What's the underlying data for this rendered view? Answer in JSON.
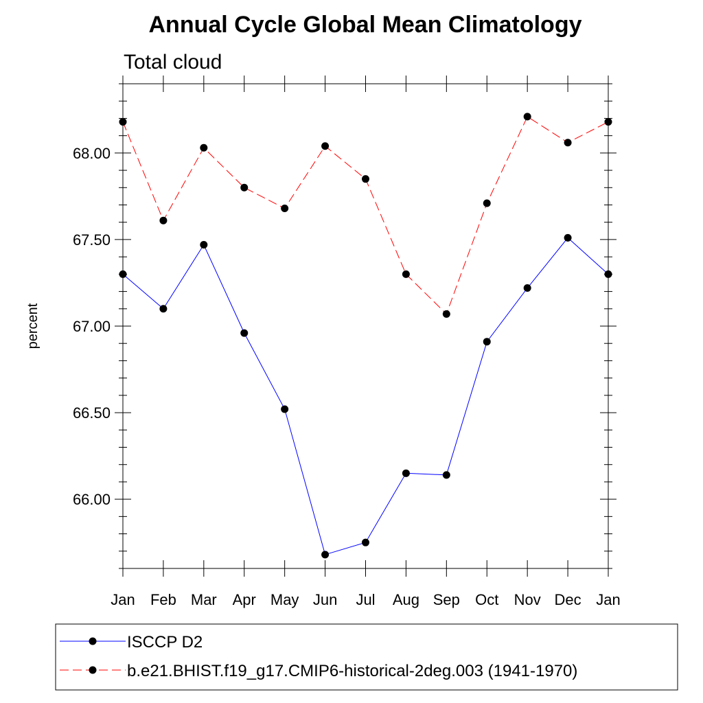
{
  "chart_data": {
    "type": "line",
    "title": "Annual Cycle Global Mean Climatology",
    "subtitle": "Total cloud",
    "xlabel": "",
    "ylabel": "percent",
    "categories": [
      "Jan",
      "Feb",
      "Mar",
      "Apr",
      "May",
      "Jun",
      "Jul",
      "Aug",
      "Sep",
      "Oct",
      "Nov",
      "Dec",
      "Jan"
    ],
    "ylim": [
      65.6,
      68.4
    ],
    "yticks": [
      66.0,
      66.5,
      67.0,
      67.5,
      68.0
    ],
    "ytick_labels": [
      "66.00",
      "66.50",
      "67.00",
      "67.50",
      "68.00"
    ],
    "grid": false,
    "legend_position": "bottom",
    "series": [
      {
        "name": "ISCCP D2",
        "color": "#0000ff",
        "line_style": "solid",
        "marker": "filled-circle",
        "values": [
          67.3,
          67.1,
          67.47,
          66.96,
          66.52,
          65.68,
          65.75,
          66.15,
          66.14,
          66.91,
          67.22,
          67.51,
          67.3
        ]
      },
      {
        "name": "b.e21.BHIST.f19_g17.CMIP6-historical-2deg.003 (1941-1970)",
        "color": "#ff0000",
        "line_style": "dashed",
        "marker": "filled-circle",
        "values": [
          68.18,
          67.61,
          68.03,
          67.8,
          67.68,
          68.04,
          67.85,
          67.3,
          67.07,
          67.71,
          68.21,
          68.06,
          68.18
        ]
      }
    ]
  }
}
